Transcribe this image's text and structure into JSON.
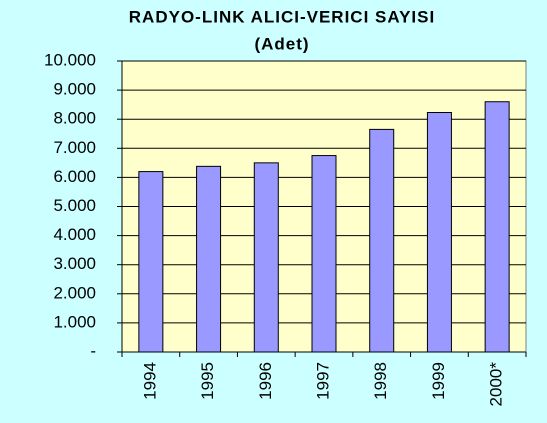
{
  "chart_data": {
    "type": "bar",
    "title": "RADYO-LINK ALICI-VERICI SAYISI",
    "subtitle": "(Adet)",
    "categories": [
      "1994",
      "1995",
      "1996",
      "1997",
      "1998",
      "1999",
      "2000*"
    ],
    "values": [
      6200,
      6380,
      6500,
      6750,
      7650,
      8230,
      8600
    ],
    "color": "#9999ff",
    "ylim": [
      0,
      10000
    ],
    "yticks": [
      {
        "value": 0,
        "label": "-"
      },
      {
        "value": 1000,
        "label": "1.000"
      },
      {
        "value": 2000,
        "label": "2.000"
      },
      {
        "value": 3000,
        "label": "3.000"
      },
      {
        "value": 4000,
        "label": "4.000"
      },
      {
        "value": 5000,
        "label": "5.000"
      },
      {
        "value": 6000,
        "label": "6.000"
      },
      {
        "value": 7000,
        "label": "7.000"
      },
      {
        "value": 8000,
        "label": "8.000"
      },
      {
        "value": 9000,
        "label": "9.000"
      },
      {
        "value": 10000,
        "label": "10.000"
      }
    ],
    "grid": true
  }
}
